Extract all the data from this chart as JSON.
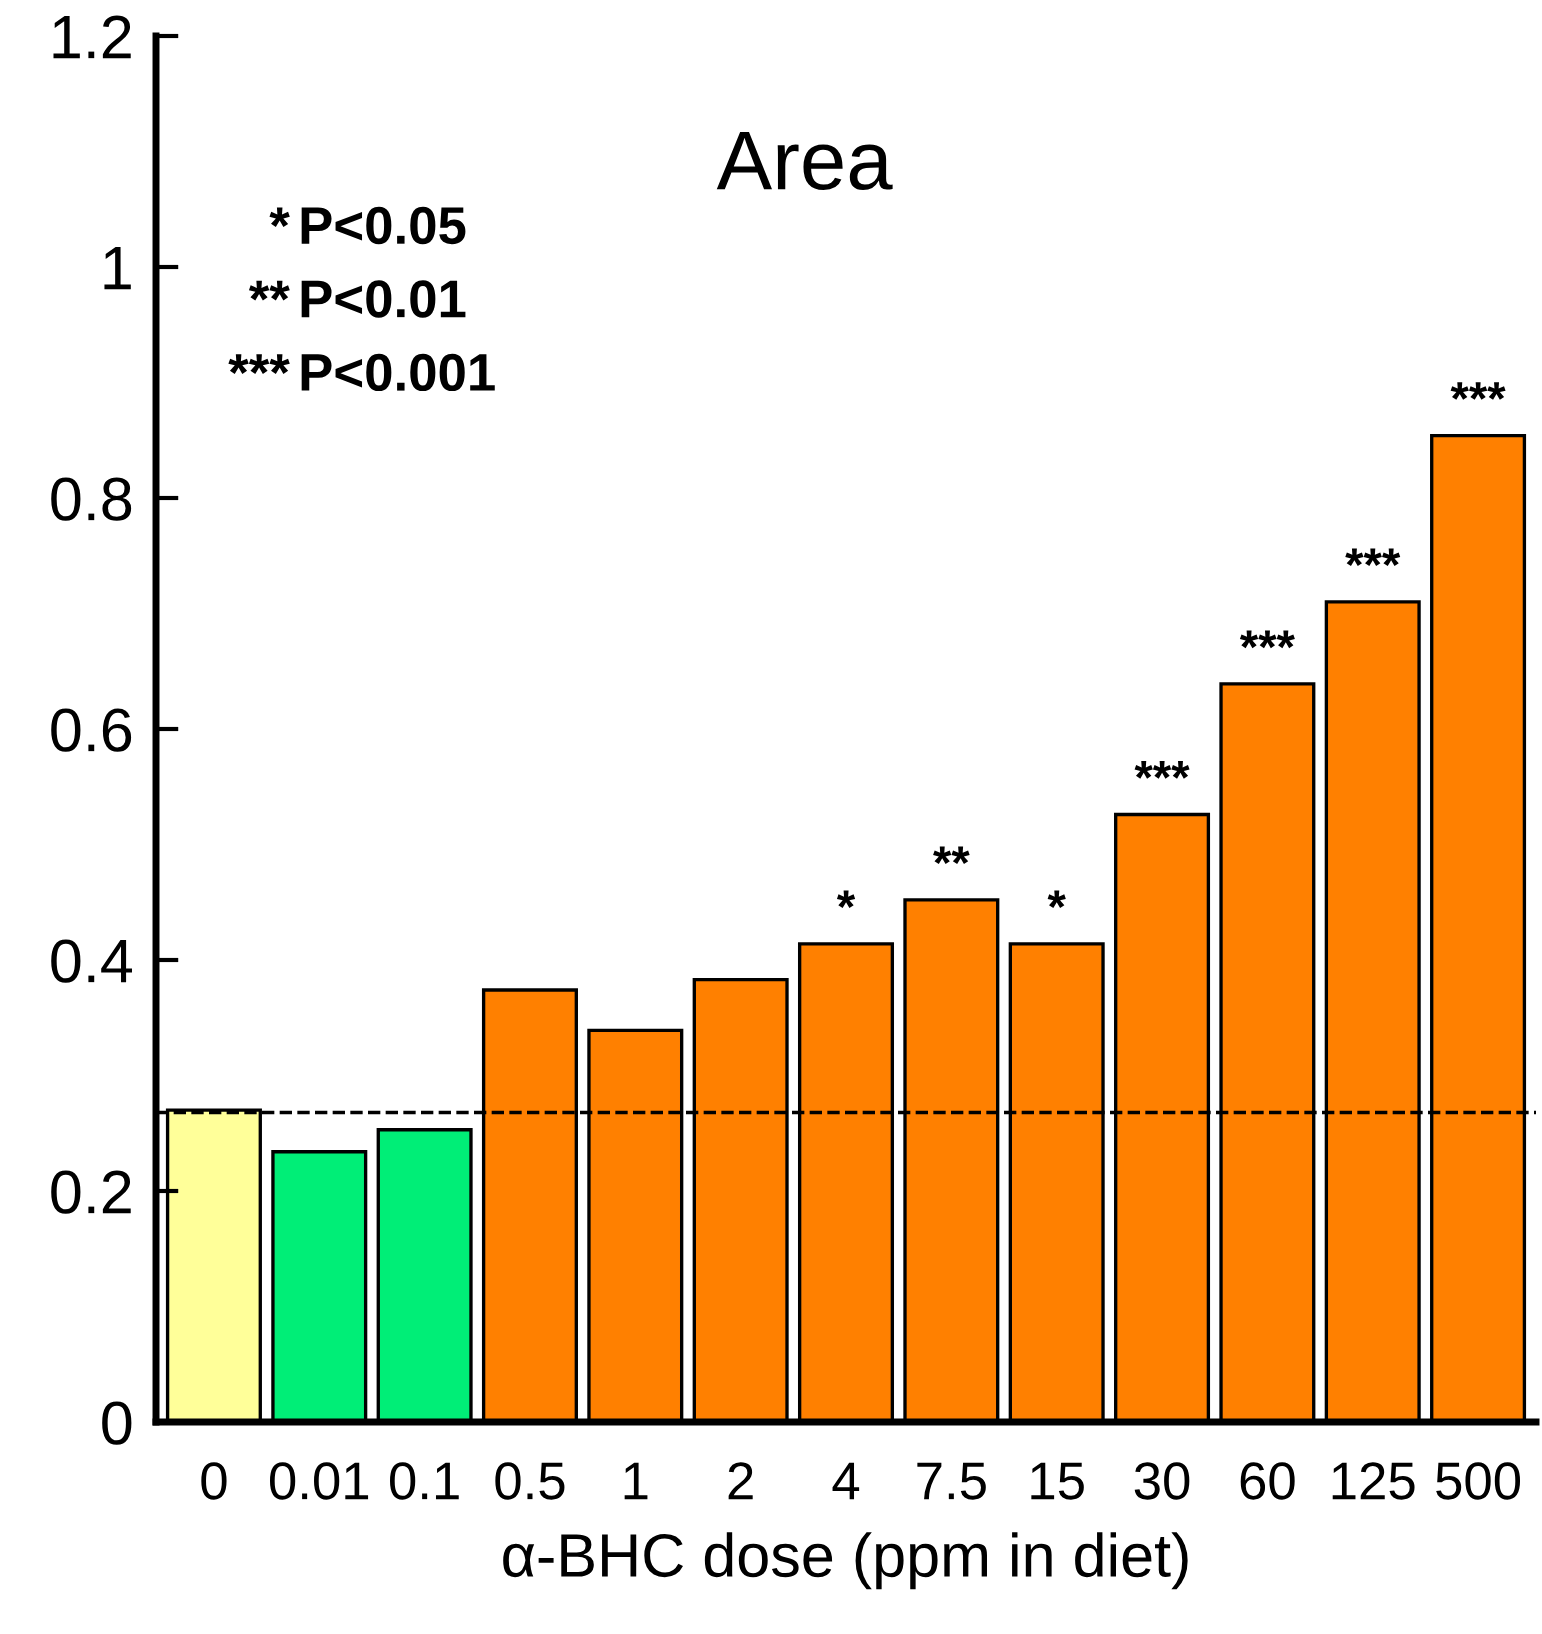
{
  "chart_data": {
    "type": "bar",
    "title": "Area",
    "xlabel": "α-BHC dose (ppm in diet)",
    "categories": [
      "0",
      "0.01",
      "0.1",
      "0.5",
      "1",
      "2",
      "4",
      "7.5",
      "15",
      "30",
      "60",
      "125",
      "500"
    ],
    "values": [
      0.27,
      0.234,
      0.253,
      0.374,
      0.339,
      0.383,
      0.414,
      0.452,
      0.414,
      0.526,
      0.639,
      0.71,
      0.854
    ],
    "colors": [
      "#ffff99",
      "#00ee77",
      "#00ee77",
      "#ff8000",
      "#ff8000",
      "#ff8000",
      "#ff8000",
      "#ff8000",
      "#ff8000",
      "#ff8000",
      "#ff8000",
      "#ff8000",
      "#ff8000"
    ],
    "value_labels": [
      null,
      null,
      null,
      null,
      null,
      null,
      "*",
      "**",
      "*",
      "***",
      "***",
      "***",
      "***"
    ],
    "ylim": [
      0,
      1.2
    ],
    "yticks": [
      0,
      0.2,
      0.4,
      0.6,
      0.8,
      1,
      1.2
    ],
    "ref_lines": [
      {
        "axis": "y",
        "value": 0.268,
        "color": "#000000",
        "line_style": "dashed"
      }
    ],
    "annotations": [
      "* P<0.05",
      "** P<0.01",
      "*** P<0.001"
    ],
    "grid": false,
    "legend": false
  }
}
